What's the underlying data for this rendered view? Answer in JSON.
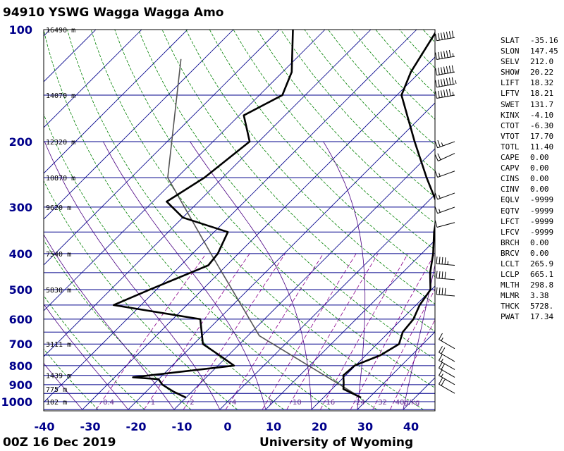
{
  "header": {
    "title": "94910 YSWG Wagga Wagga Amo"
  },
  "footer": {
    "time": "00Z 16 Dec 2019",
    "source": "University of Wyoming"
  },
  "colors": {
    "isobar": "#00008b",
    "isotherm": "#00008b",
    "dry_adiabat": "#008000",
    "moist_adiabat": "#4b0082",
    "mixing_ratio": "#8b008b",
    "trace": "#000000"
  },
  "chart_data": {
    "type": "line",
    "skewt": true,
    "pressure_ticks": [
      100,
      200,
      300,
      400,
      500,
      600,
      700,
      800,
      900,
      1000
    ],
    "temperature_ticks": [
      -40,
      -30,
      -20,
      -10,
      0,
      10,
      20,
      30,
      40
    ],
    "xlim": [
      -40,
      45
    ],
    "ylim": [
      1050,
      100
    ],
    "height_labels": [
      {
        "p": 100,
        "label": "16490 m"
      },
      {
        "p": 150,
        "label": "14070 m"
      },
      {
        "p": 200,
        "label": "12320 m"
      },
      {
        "p": 250,
        "label": "10870 m"
      },
      {
        "p": 300,
        "label": "9620 m"
      },
      {
        "p": 400,
        "label": "7540 m"
      },
      {
        "p": 500,
        "label": "5830 m"
      },
      {
        "p": 700,
        "label": "3111 m"
      },
      {
        "p": 850,
        "label": "1439 m"
      },
      {
        "p": 925,
        "label": "775 m"
      },
      {
        "p": 1000,
        "label": "102 m"
      }
    ],
    "mixing_ratio_labels": [
      "0.4",
      "1",
      "2",
      "4",
      "7",
      "10",
      "16",
      "24",
      "32",
      "40g/kg"
    ],
    "series": [
      {
        "points": [
          {
            "p": 975,
            "t": 28.2
          },
          {
            "p": 925,
            "t": 22.5
          },
          {
            "p": 890,
            "t": 21.2
          },
          {
            "p": 850,
            "t": 19.5
          },
          {
            "p": 800,
            "t": 19.8
          },
          {
            "p": 750,
            "t": 23.2
          },
          {
            "p": 700,
            "t": 24.8
          },
          {
            "p": 650,
            "t": 23.0
          },
          {
            "p": 600,
            "t": 22.5
          },
          {
            "p": 550,
            "t": 20.8
          },
          {
            "p": 500,
            "t": 19.8
          },
          {
            "p": 450,
            "t": 16.0
          },
          {
            "p": 400,
            "t": 12.5
          },
          {
            "p": 350,
            "t": 8.0
          },
          {
            "p": 300,
            "t": 3.5
          },
          {
            "p": 250,
            "t": -5.5
          },
          {
            "p": 200,
            "t": -16.0
          },
          {
            "p": 150,
            "t": -29.0
          },
          {
            "p": 130,
            "t": -32.0
          },
          {
            "p": 100,
            "t": -35.5
          }
        ]
      },
      {
        "points": [
          {
            "p": 975,
            "t": -10.0
          },
          {
            "p": 940,
            "t": -14.0
          },
          {
            "p": 900,
            "t": -18.0
          },
          {
            "p": 870,
            "t": -20.0
          },
          {
            "p": 860,
            "t": -26.0
          },
          {
            "p": 800,
            "t": -6.5
          },
          {
            "p": 750,
            "t": -12.0
          },
          {
            "p": 700,
            "t": -18.0
          },
          {
            "p": 600,
            "t": -24.0
          },
          {
            "p": 550,
            "t": -46.0
          },
          {
            "p": 500,
            "t": -41.5
          },
          {
            "p": 430,
            "t": -34.0
          },
          {
            "p": 400,
            "t": -34.5
          },
          {
            "p": 350,
            "t": -37.0
          },
          {
            "p": 320,
            "t": -50.0
          },
          {
            "p": 290,
            "t": -57.0
          },
          {
            "p": 250,
            "t": -54.0
          },
          {
            "p": 200,
            "t": -52.0
          },
          {
            "p": 170,
            "t": -59.0
          },
          {
            "p": 150,
            "t": -55.0
          },
          {
            "p": 130,
            "t": -58.0
          },
          {
            "p": 100,
            "t": -67.0
          }
        ]
      }
    ],
    "parcel": [
      {
        "p": 975,
        "t": 28.2
      },
      {
        "p": 665,
        "t": -7.5
      },
      {
        "p": 400,
        "t": -36.0
      },
      {
        "p": 250,
        "t": -62.0
      },
      {
        "p": 120,
        "t": -85.0
      }
    ],
    "wind_barbs": [
      {
        "p": 105,
        "dir": 260,
        "spd": 70
      },
      {
        "p": 118,
        "dir": 260,
        "spd": 65
      },
      {
        "p": 130,
        "dir": 260,
        "spd": 70
      },
      {
        "p": 140,
        "dir": 260,
        "spd": 75
      },
      {
        "p": 150,
        "dir": 260,
        "spd": 65
      },
      {
        "p": 200,
        "dir": 250,
        "spd": 25
      },
      {
        "p": 215,
        "dir": 245,
        "spd": 20
      },
      {
        "p": 240,
        "dir": 250,
        "spd": 15
      },
      {
        "p": 275,
        "dir": 250,
        "spd": 15
      },
      {
        "p": 300,
        "dir": 250,
        "spd": 15
      },
      {
        "p": 330,
        "dir": 255,
        "spd": 10
      },
      {
        "p": 430,
        "dir": 275,
        "spd": 45
      },
      {
        "p": 470,
        "dir": 275,
        "spd": 40
      },
      {
        "p": 520,
        "dir": 275,
        "spd": 40
      },
      {
        "p": 720,
        "dir": 300,
        "spd": 15
      },
      {
        "p": 780,
        "dir": 300,
        "spd": 20
      },
      {
        "p": 820,
        "dir": 300,
        "spd": 15
      },
      {
        "p": 860,
        "dir": 300,
        "spd": 20
      },
      {
        "p": 900,
        "dir": 300,
        "spd": 15
      },
      {
        "p": 950,
        "dir": 300,
        "spd": 20
      }
    ]
  },
  "indices": [
    {
      "key": "SLAT",
      "val": "-35.16"
    },
    {
      "key": "SLON",
      "val": "147.45"
    },
    {
      "key": "SELV",
      "val": "212.0"
    },
    {
      "key": "SHOW",
      "val": "20.22"
    },
    {
      "key": "LIFT",
      "val": "18.32"
    },
    {
      "key": "LFTV",
      "val": "18.21"
    },
    {
      "key": "SWET",
      "val": "131.7"
    },
    {
      "key": "KINX",
      "val": "-4.10"
    },
    {
      "key": "CTOT",
      "val": "-6.30"
    },
    {
      "key": "VTOT",
      "val": "17.70"
    },
    {
      "key": "TOTL",
      "val": "11.40"
    },
    {
      "key": "CAPE",
      "val": "0.00"
    },
    {
      "key": "CAPV",
      "val": "0.00"
    },
    {
      "key": "CINS",
      "val": "0.00"
    },
    {
      "key": "CINV",
      "val": "0.00"
    },
    {
      "key": "EQLV",
      "val": "-9999"
    },
    {
      "key": "EQTV",
      "val": "-9999"
    },
    {
      "key": "LFCT",
      "val": "-9999"
    },
    {
      "key": "LFCV",
      "val": "-9999"
    },
    {
      "key": "BRCH",
      "val": "0.00"
    },
    {
      "key": "BRCV",
      "val": "0.00"
    },
    {
      "key": "LCLT",
      "val": "265.9"
    },
    {
      "key": "LCLP",
      "val": "665.1"
    },
    {
      "key": "MLTH",
      "val": "298.8"
    },
    {
      "key": "MLMR",
      "val": "3.38"
    },
    {
      "key": "THCK",
      "val": "5728."
    },
    {
      "key": "PWAT",
      "val": "17.34"
    }
  ]
}
